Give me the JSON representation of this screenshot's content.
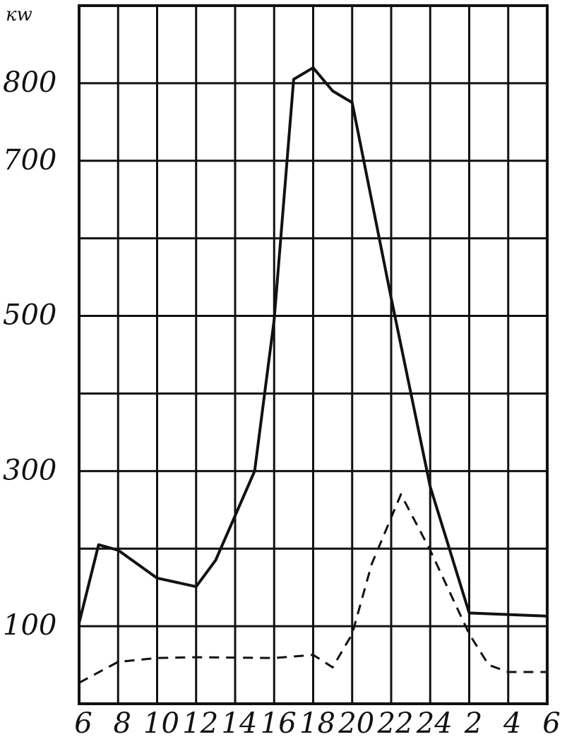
{
  "chart_data": {
    "type": "line",
    "y_label": "кw",
    "xlim": [
      6,
      30
    ],
    "xticks": [
      6,
      8,
      10,
      12,
      14,
      16,
      18,
      20,
      22,
      24,
      {
        "value": 26,
        "label": "2"
      },
      {
        "value": 28,
        "label": "4"
      },
      {
        "value": 30,
        "label": "6"
      }
    ],
    "ylim": [
      0,
      900
    ],
    "yticks": [
      {
        "value": 100,
        "label": "100"
      },
      {
        "value": 200,
        "label": null
      },
      {
        "value": 300,
        "label": "300"
      },
      {
        "value": 400,
        "label": null
      },
      {
        "value": 500,
        "label": "500"
      },
      {
        "value": 600,
        "label": null
      },
      {
        "value": 700,
        "label": "700"
      },
      {
        "value": 800,
        "label": "800"
      }
    ],
    "grid": true,
    "series": [
      {
        "style": "solid",
        "color": "#111111",
        "x": [
          6,
          7,
          8,
          10,
          12,
          13,
          15,
          16,
          17,
          18,
          19,
          20,
          22,
          24,
          26,
          30
        ],
        "values": [
          104,
          205,
          198,
          162,
          151,
          185,
          300,
          495,
          805,
          820,
          790,
          775,
          523,
          280,
          117,
          113
        ]
      },
      {
        "style": "dashed",
        "color": "#111111",
        "x": [
          6,
          8,
          10,
          12,
          16,
          18,
          19,
          20,
          21,
          22.5,
          24,
          26,
          27,
          28,
          30
        ],
        "values": [
          27,
          54,
          59,
          60,
          59,
          63,
          47,
          90,
          180,
          270,
          198,
          90,
          50,
          41,
          41
        ]
      }
    ]
  }
}
